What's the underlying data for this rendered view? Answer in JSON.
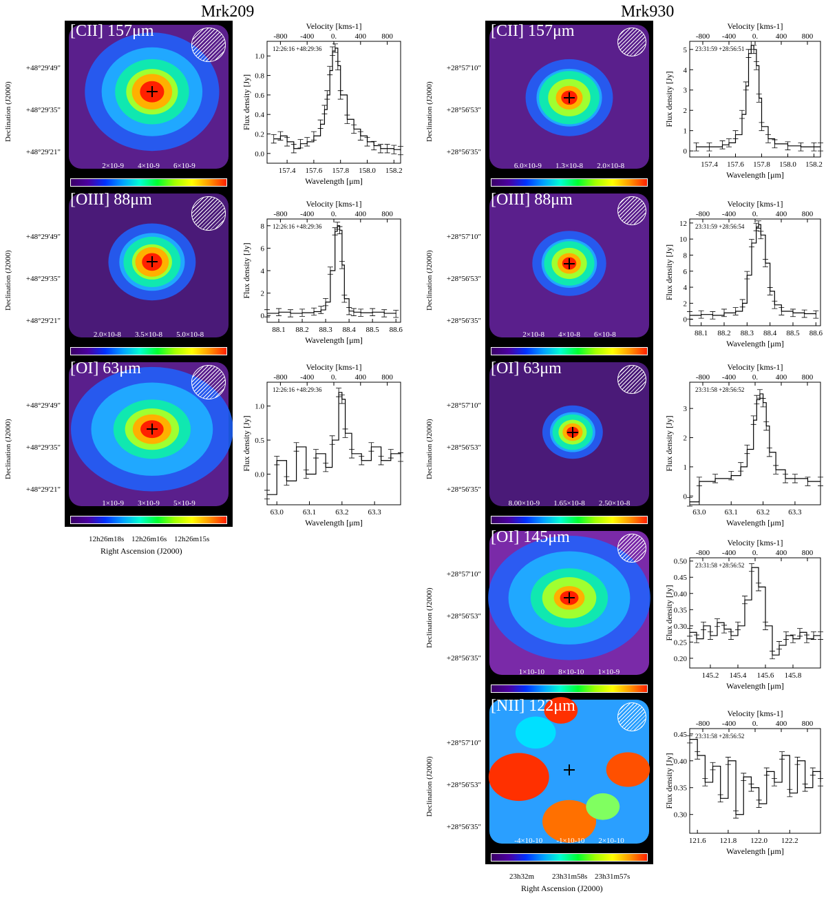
{
  "figure": {
    "col_left_title": "Mrk209",
    "col_right_title": "Mrk930",
    "ra_axis_label": "Right Ascension (J2000)",
    "dec_axis_label": "Declination (J2000)",
    "ra_ticks_left": [
      "12h26m18s",
      "12h26m16s",
      "12h26m15s"
    ],
    "ra_ticks_right": [
      "23h32m",
      "23h31m58s",
      "23h31m57s"
    ],
    "velocity_label": "Velocity [kms-1]",
    "flux_label": "Flux density [Jy]",
    "wavelength_label": "Wavelength [μm]",
    "velocity_ticks": [
      "-800",
      "-400",
      "0.",
      "400",
      "800"
    ]
  },
  "maps": [
    {
      "id": "mrk209-cii",
      "line": "[CII] 157μm",
      "colorbar_ticks": [
        "2×10-9",
        "4×10-9",
        "6×10-9"
      ],
      "dec_ticks": [
        "+48°29'49\"",
        "+48°29'35\"",
        "+48°29'21\""
      ]
    },
    {
      "id": "mrk209-oiii",
      "line": "[OIII] 88μm",
      "colorbar_ticks": [
        "2.0×10-8",
        "3.5×10-8",
        "5.0×10-8"
      ],
      "dec_ticks": [
        "+48°29'49\"",
        "+48°29'35\"",
        "+48°29'21\""
      ]
    },
    {
      "id": "mrk209-oi63",
      "line": "[OI] 63μm",
      "colorbar_ticks": [
        "1×10-9",
        "3×10-9",
        "5×10-9"
      ],
      "dec_ticks": [
        "+48°29'49\"",
        "+48°29'35\"",
        "+48°29'21\""
      ]
    },
    {
      "id": "mrk930-cii",
      "line": "[CII] 157μm",
      "colorbar_ticks": [
        "6.0×10-9",
        "1.3×10-8",
        "2.0×10-8"
      ],
      "dec_ticks": [
        "+28°57'10\"",
        "+28°56'53\"",
        "+28°56'35\""
      ]
    },
    {
      "id": "mrk930-oiii",
      "line": "[OIII] 88μm",
      "colorbar_ticks": [
        "2×10-8",
        "4×10-8",
        "6×10-8"
      ],
      "dec_ticks": [
        "+28°57'10\"",
        "+28°56'53\"",
        "+28°56'35\""
      ]
    },
    {
      "id": "mrk930-oi63",
      "line": "[OI] 63μm",
      "colorbar_ticks": [
        "8.00×10-9",
        "1.65×10-8",
        "2.50×10-8"
      ],
      "dec_ticks": [
        "+28°57'10\"",
        "+28°56'53\"",
        "+28°56'35\""
      ]
    },
    {
      "id": "mrk930-oi145",
      "line": "[OI] 145μm",
      "colorbar_ticks": [
        "1×10-10",
        "8×10-10",
        "1×10-9"
      ],
      "dec_ticks": [
        "+28°57'10\"",
        "+28°56'53\"",
        "+28°56'35\""
      ]
    },
    {
      "id": "mrk930-nii",
      "line": "[NII] 122μm",
      "colorbar_ticks": [
        "-4×10-10",
        "-1×10-10",
        "2×10-10"
      ],
      "dec_ticks": [
        "+28°57'10\"",
        "+28°56'53\"",
        "+28°56'35\""
      ]
    }
  ],
  "chart_data": [
    {
      "type": "line",
      "id": "mrk209-cii",
      "coord": "12:26:16 +48:29:36",
      "xlim": [
        157.25,
        158.25
      ],
      "ylim": [
        -0.1,
        1.15
      ],
      "xticks": [
        157.4,
        157.6,
        157.8,
        158.0,
        158.2
      ],
      "yticks": [
        0.0,
        0.2,
        0.4,
        0.6,
        0.8,
        1.0
      ],
      "x": [
        157.3,
        157.35,
        157.4,
        157.45,
        157.5,
        157.55,
        157.6,
        157.65,
        157.68,
        157.7,
        157.72,
        157.74,
        157.76,
        157.78,
        157.8,
        157.85,
        157.9,
        157.95,
        158.0,
        158.05,
        158.1,
        158.15,
        158.2,
        158.25
      ],
      "y": [
        0.15,
        0.18,
        0.12,
        0.05,
        0.1,
        0.12,
        0.18,
        0.3,
        0.45,
        0.6,
        0.85,
        1.05,
        1.08,
        0.9,
        0.6,
        0.35,
        0.25,
        0.18,
        0.12,
        0.08,
        0.05,
        0.05,
        0.04,
        0.03
      ]
    },
    {
      "type": "line",
      "id": "mrk209-oiii",
      "coord": "12:26:16 +48:29:36",
      "xlim": [
        88.05,
        88.62
      ],
      "ylim": [
        -0.6,
        8.6
      ],
      "xticks": [
        88.1,
        88.2,
        88.3,
        88.4,
        88.5,
        88.6
      ],
      "yticks": [
        0,
        2,
        4,
        6,
        8
      ],
      "x": [
        88.05,
        88.1,
        88.15,
        88.2,
        88.25,
        88.28,
        88.3,
        88.32,
        88.34,
        88.35,
        88.36,
        88.37,
        88.38,
        88.4,
        88.42,
        88.45,
        88.5,
        88.55,
        88.6
      ],
      "y": [
        0.2,
        0.3,
        0.2,
        0.25,
        0.35,
        0.5,
        1.2,
        4.0,
        7.5,
        8.0,
        7.6,
        4.5,
        1.5,
        0.4,
        0.3,
        0.25,
        0.3,
        0.2,
        0.15
      ]
    },
    {
      "type": "line",
      "id": "mrk209-oi63",
      "coord": "12:26:16 +48:29:36",
      "xlim": [
        62.97,
        63.38
      ],
      "ylim": [
        -0.45,
        1.35
      ],
      "xticks": [
        63.0,
        63.1,
        63.2,
        63.3
      ],
      "yticks": [
        0.0,
        0.5,
        1.0
      ],
      "x": [
        62.97,
        63.0,
        63.03,
        63.06,
        63.09,
        63.12,
        63.15,
        63.17,
        63.19,
        63.2,
        63.21,
        63.23,
        63.26,
        63.29,
        63.32,
        63.35,
        63.38
      ],
      "y": [
        -0.3,
        0.2,
        -0.1,
        0.4,
        0.0,
        0.3,
        0.1,
        0.5,
        1.2,
        1.1,
        0.6,
        0.3,
        0.2,
        0.4,
        0.2,
        0.3,
        0.25
      ]
    },
    {
      "type": "line",
      "id": "mrk930-cii",
      "coord": "23:31:59 +28:56:51",
      "xlim": [
        157.25,
        158.25
      ],
      "ylim": [
        -0.3,
        5.4
      ],
      "xticks": [
        157.4,
        157.6,
        157.8,
        158.0,
        158.2
      ],
      "yticks": [
        0,
        1,
        2,
        3,
        4,
        5
      ],
      "x": [
        157.3,
        157.4,
        157.5,
        157.55,
        157.6,
        157.65,
        157.68,
        157.7,
        157.72,
        157.74,
        157.76,
        157.78,
        157.8,
        157.85,
        157.9,
        158.0,
        158.1,
        158.2,
        158.25
      ],
      "y": [
        0.2,
        0.2,
        0.3,
        0.4,
        0.8,
        1.8,
        3.2,
        4.8,
        5.2,
        5.0,
        4.2,
        2.6,
        1.2,
        0.6,
        0.35,
        0.25,
        0.2,
        0.2,
        0.2
      ]
    },
    {
      "type": "line",
      "id": "mrk930-oiii",
      "coord": "23:31:59 +28:56:54",
      "xlim": [
        88.05,
        88.62
      ],
      "ylim": [
        -0.8,
        12.5
      ],
      "xticks": [
        88.1,
        88.2,
        88.3,
        88.4,
        88.5,
        88.6
      ],
      "yticks": [
        0,
        2,
        4,
        6,
        8,
        10,
        12
      ],
      "x": [
        88.05,
        88.1,
        88.15,
        88.2,
        88.25,
        88.28,
        88.3,
        88.32,
        88.34,
        88.35,
        88.36,
        88.38,
        88.4,
        88.42,
        88.45,
        88.5,
        88.55,
        88.6
      ],
      "y": [
        0.5,
        0.6,
        0.5,
        0.8,
        1.0,
        2.0,
        5.5,
        9.5,
        11.5,
        11.8,
        10.5,
        7.0,
        3.5,
        1.8,
        1.0,
        0.8,
        0.7,
        0.6
      ]
    },
    {
      "type": "line",
      "id": "mrk930-oi63",
      "coord": "23:31:58 +28:56:52",
      "xlim": [
        62.97,
        63.38
      ],
      "ylim": [
        -0.3,
        3.9
      ],
      "xticks": [
        63.0,
        63.1,
        63.2,
        63.3
      ],
      "yticks": [
        0,
        1,
        2,
        3
      ],
      "x": [
        62.97,
        63.0,
        63.05,
        63.1,
        63.13,
        63.15,
        63.17,
        63.18,
        63.19,
        63.2,
        63.21,
        63.22,
        63.24,
        63.27,
        63.3,
        63.34,
        63.38
      ],
      "y": [
        -0.2,
        0.5,
        0.6,
        0.7,
        1.0,
        1.6,
        2.6,
        3.3,
        3.5,
        3.2,
        2.4,
        1.5,
        0.9,
        0.6,
        0.6,
        0.5,
        0.5
      ]
    },
    {
      "type": "line",
      "id": "mrk930-oi145",
      "coord": "23:31:58 +28:56:52",
      "xlim": [
        145.05,
        146.0
      ],
      "ylim": [
        0.17,
        0.51
      ],
      "xticks": [
        145.2,
        145.4,
        145.6,
        145.8
      ],
      "yticks": [
        0.2,
        0.25,
        0.3,
        0.35,
        0.4,
        0.45,
        0.5
      ],
      "x": [
        145.05,
        145.1,
        145.15,
        145.2,
        145.25,
        145.3,
        145.35,
        145.4,
        145.45,
        145.5,
        145.55,
        145.6,
        145.65,
        145.7,
        145.75,
        145.8,
        145.85,
        145.9,
        145.95,
        146.0
      ],
      "y": [
        0.28,
        0.26,
        0.3,
        0.27,
        0.31,
        0.29,
        0.27,
        0.3,
        0.38,
        0.48,
        0.42,
        0.3,
        0.21,
        0.24,
        0.27,
        0.26,
        0.28,
        0.26,
        0.27,
        0.27
      ]
    },
    {
      "type": "line",
      "id": "mrk930-nii",
      "coord": "23:31:58 +28:56:52",
      "xlim": [
        121.55,
        122.4
      ],
      "ylim": [
        0.265,
        0.46
      ],
      "xticks": [
        121.6,
        121.8,
        122.0,
        122.2
      ],
      "yticks": [
        0.3,
        0.35,
        0.4,
        0.45
      ],
      "x": [
        121.55,
        121.6,
        121.65,
        121.7,
        121.75,
        121.8,
        121.85,
        121.9,
        121.95,
        122.0,
        122.05,
        122.1,
        122.15,
        122.2,
        122.25,
        122.3,
        122.35,
        122.4
      ],
      "y": [
        0.44,
        0.41,
        0.36,
        0.39,
        0.33,
        0.4,
        0.3,
        0.37,
        0.35,
        0.32,
        0.38,
        0.36,
        0.41,
        0.34,
        0.4,
        0.35,
        0.38,
        0.36
      ]
    }
  ]
}
